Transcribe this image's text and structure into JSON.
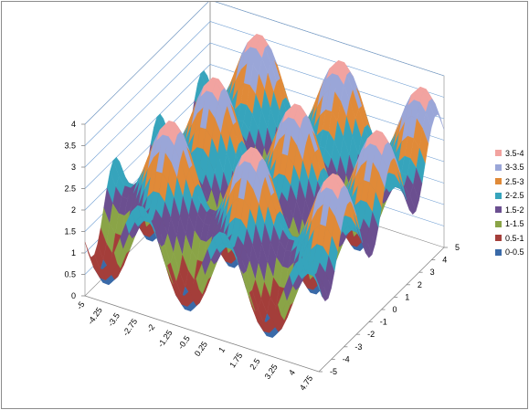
{
  "chart_data": {
    "type": "surface",
    "title": "",
    "xlabel": "",
    "ylabel": "",
    "zlabel": "",
    "x_ticks": [
      "-5",
      "-4.25",
      "-3.5",
      "-2.75",
      "-2",
      "-1.25",
      "-0.5",
      "0.25",
      "1",
      "1.75",
      "2.5",
      "3.25",
      "4",
      "4.75"
    ],
    "y_ticks": [
      "-5",
      "-4",
      "-3",
      "-2",
      "-1",
      "0",
      "1",
      "2",
      "3",
      "4",
      "5"
    ],
    "z_ticks": [
      "0",
      "0.5",
      "1",
      "1.5",
      "2",
      "2.5",
      "3",
      "3.5",
      "4"
    ],
    "x_range": [
      -5,
      5
    ],
    "y_range": [
      -5,
      5
    ],
    "z_range": [
      0,
      4
    ],
    "x_step": 0.25,
    "y_step": 0.25,
    "surface_function": "2 + 0.9*sin(1.8*x) + 0.9*sin(1.8*y)",
    "bands": [
      {
        "label": "3.5-4",
        "min": 3.5,
        "max": 4.0,
        "color": "#f2a3a0"
      },
      {
        "label": "3-3.5",
        "min": 3.0,
        "max": 3.5,
        "color": "#9aa6d8"
      },
      {
        "label": "2.5-3",
        "min": 2.5,
        "max": 3.0,
        "color": "#e08a38"
      },
      {
        "label": "2-2.5",
        "min": 2.0,
        "max": 2.5,
        "color": "#36a4bc"
      },
      {
        "label": "1.5-2",
        "min": 1.5,
        "max": 2.0,
        "color": "#6b4f90"
      },
      {
        "label": "1-1.5",
        "min": 1.0,
        "max": 1.5,
        "color": "#8aa447"
      },
      {
        "label": "0.5-1",
        "min": 0.5,
        "max": 1.0,
        "color": "#a43e3a"
      },
      {
        "label": "0-0.5",
        "min": 0.0,
        "max": 0.5,
        "color": "#3a6aa8"
      }
    ],
    "legend_position": "right",
    "gridlines": "major"
  },
  "colors": {
    "gridline": "#6f9ed3",
    "axis": "#868686"
  }
}
